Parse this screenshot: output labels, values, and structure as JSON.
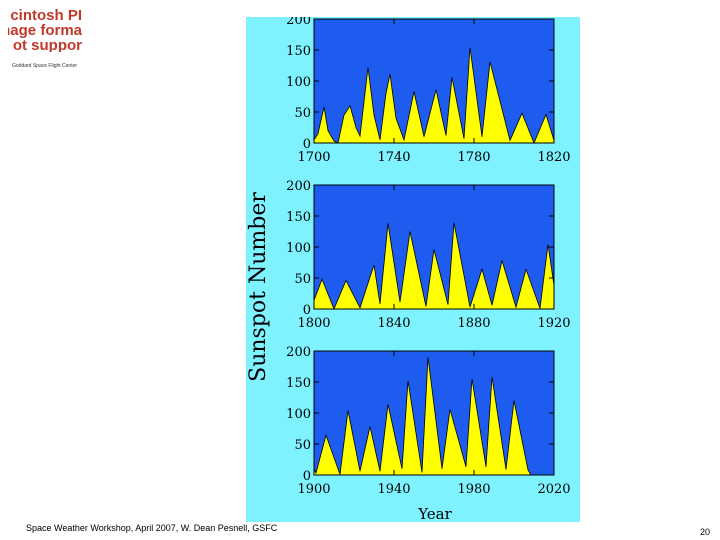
{
  "logo": {
    "lines": [
      "cintosh PI",
      "nage forma",
      "ot suppor"
    ],
    "accent_color": "#c0392b"
  },
  "org_label": "Goddard Space Flight Center",
  "footer": "Space Weather Workshop, April 2007, W. Dean Pesnell, GSFC",
  "page_number": "20",
  "colors": {
    "panel_background": "#7ff2ff",
    "plot_background": "#1e5cf0",
    "fill": "#ffff00"
  },
  "chart_data": [
    {
      "type": "area",
      "x_ticks": [
        1700,
        1740,
        1780,
        1820
      ],
      "y_ticks": [
        0,
        50,
        100,
        150,
        200
      ],
      "xlim": [
        1700,
        1820
      ],
      "ylim": [
        0,
        200
      ],
      "ylabel": "Sunspot Number",
      "xlabel": "",
      "series": [
        {
          "x": [
            1700,
            1702,
            1705,
            1707,
            1710,
            1712,
            1715,
            1718,
            1721,
            1723,
            1727,
            1730,
            1733,
            1736,
            1738,
            1741,
            1745,
            1750,
            1755,
            1761,
            1766,
            1769,
            1775,
            1778,
            1784,
            1788,
            1798,
            1804,
            1810,
            1816,
            1820
          ],
          "y": [
            5,
            15,
            58,
            20,
            3,
            0,
            45,
            60,
            25,
            11,
            122,
            45,
            5,
            80,
            111,
            40,
            5,
            83,
            10,
            86,
            12,
            106,
            7,
            154,
            10,
            131,
            4,
            48,
            0,
            46,
            4
          ]
        }
      ]
    },
    {
      "type": "area",
      "x_ticks": [
        1800,
        1840,
        1880,
        1920
      ],
      "y_ticks": [
        0,
        50,
        100,
        150,
        200
      ],
      "xlim": [
        1800,
        1920
      ],
      "ylim": [
        0,
        200
      ],
      "ylabel": "",
      "xlabel": "",
      "series": [
        {
          "x": [
            1800,
            1804,
            1810,
            1816,
            1823,
            1830,
            1833,
            1837,
            1843,
            1848,
            1856,
            1860,
            1867,
            1870,
            1878,
            1884,
            1889,
            1894,
            1901,
            1906,
            1913,
            1917,
            1920
          ],
          "y": [
            14,
            48,
            0,
            46,
            2,
            71,
            8,
            138,
            11,
            125,
            4,
            96,
            7,
            139,
            3,
            64,
            6,
            78,
            3,
            64,
            1,
            104,
            38
          ]
        }
      ]
    },
    {
      "type": "area",
      "x_ticks": [
        1900,
        1940,
        1980,
        2020
      ],
      "y_ticks": [
        0,
        50,
        100,
        150,
        200
      ],
      "xlim": [
        1900,
        2020
      ],
      "ylim": [
        0,
        200
      ],
      "ylabel": "",
      "xlabel": "Year",
      "series": [
        {
          "x": [
            1900,
            1901,
            1906,
            1913,
            1917,
            1923,
            1928,
            1933,
            1937,
            1944,
            1947,
            1954,
            1957,
            1964,
            1968,
            1976,
            1979,
            1986,
            1989,
            1996,
            2000,
            2007,
            2008
          ],
          "y": [
            10,
            3,
            64,
            1,
            104,
            6,
            78,
            6,
            114,
            10,
            152,
            4,
            190,
            10,
            106,
            13,
            155,
            13,
            158,
            9,
            120,
            8,
            3
          ]
        }
      ]
    }
  ]
}
